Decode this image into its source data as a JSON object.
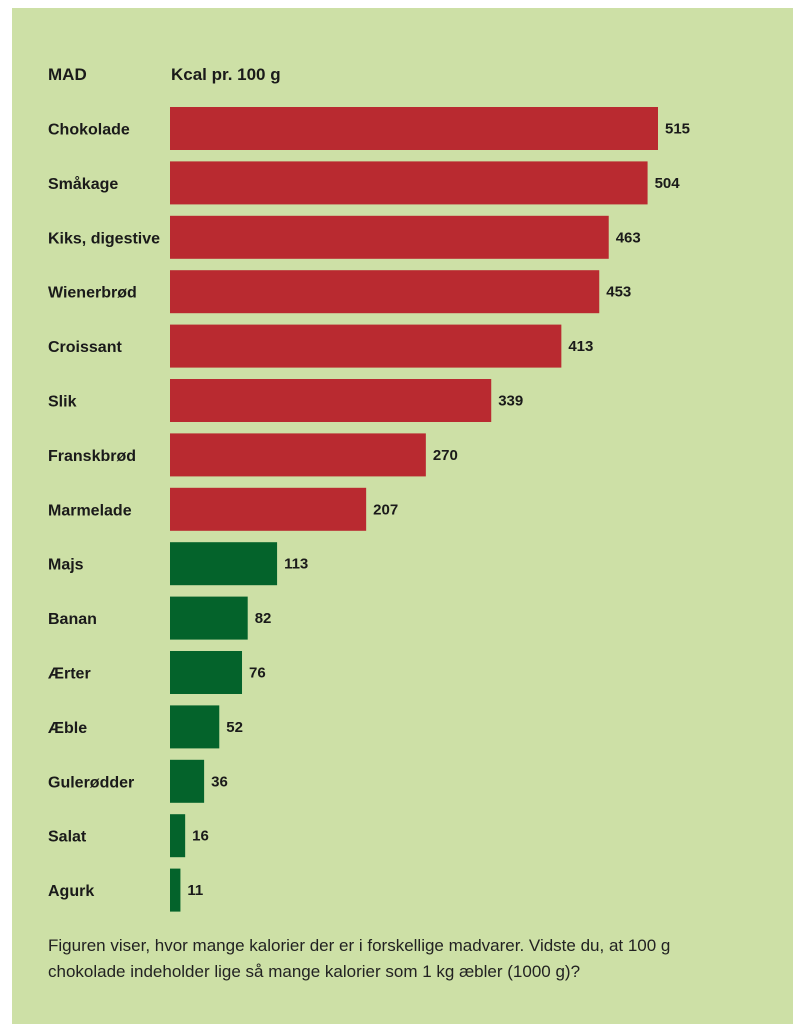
{
  "header": {
    "category_col": "MAD",
    "value_col": "Kcal pr. 100 g"
  },
  "caption": "Figuren viser, hvor mange kalorier der er i forskellige madvarer. Vidste du, at 100 g chokolade indeholder lige så mange kalorier som 1 kg æbler (1000 g)?",
  "colors": {
    "background": "#cde0a6",
    "red_bar": "#b92a30",
    "green_bar": "#04632b"
  },
  "chart_data": {
    "type": "bar",
    "orientation": "horizontal",
    "categories": [
      "Chokolade",
      "Småkage",
      "Kiks, digestive",
      "Wienerbrød",
      "Croissant",
      "Slik",
      "Franskbrød",
      "Marmelade",
      "Majs",
      "Banan",
      "Ærter",
      "Æble",
      "Gulerødder",
      "Salat",
      "Agurk"
    ],
    "values": [
      515,
      504,
      463,
      453,
      413,
      339,
      270,
      207,
      113,
      82,
      76,
      52,
      36,
      16,
      11
    ],
    "bar_colors": [
      "red",
      "red",
      "red",
      "red",
      "red",
      "red",
      "red",
      "red",
      "green",
      "green",
      "green",
      "green",
      "green",
      "green",
      "green"
    ],
    "xlabel": "Kcal pr. 100 g",
    "ylabel": "MAD",
    "xlim": [
      0,
      515
    ],
    "grid": false,
    "legend": "none"
  }
}
